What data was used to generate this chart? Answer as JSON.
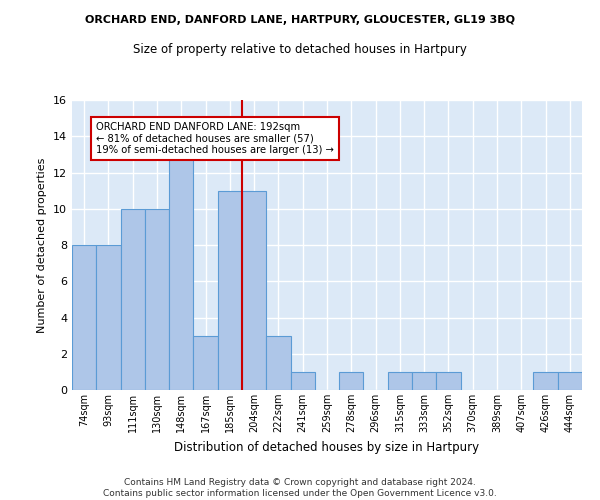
{
  "title": "ORCHARD END, DANFORD LANE, HARTPURY, GLOUCESTER, GL19 3BQ",
  "subtitle": "Size of property relative to detached houses in Hartpury",
  "xlabel": "Distribution of detached houses by size in Hartpury",
  "ylabel": "Number of detached properties",
  "categories": [
    "74sqm",
    "93sqm",
    "111sqm",
    "130sqm",
    "148sqm",
    "167sqm",
    "185sqm",
    "204sqm",
    "222sqm",
    "241sqm",
    "259sqm",
    "278sqm",
    "296sqm",
    "315sqm",
    "333sqm",
    "352sqm",
    "370sqm",
    "389sqm",
    "407sqm",
    "426sqm",
    "444sqm"
  ],
  "values": [
    8,
    8,
    10,
    10,
    13,
    3,
    11,
    11,
    3,
    1,
    0,
    1,
    0,
    1,
    1,
    1,
    0,
    0,
    0,
    1,
    1
  ],
  "bar_color": "#aec6e8",
  "bar_edge_color": "#5b9bd5",
  "background_color": "#dce9f7",
  "grid_color": "#ffffff",
  "vline_x": 6.5,
  "vline_color": "#cc0000",
  "annotation_text": "ORCHARD END DANFORD LANE: 192sqm\n← 81% of detached houses are smaller (57)\n19% of semi-detached houses are larger (13) →",
  "annotation_box_color": "#ffffff",
  "annotation_box_edge": "#cc0000",
  "ylim": [
    0,
    16
  ],
  "yticks": [
    0,
    2,
    4,
    6,
    8,
    10,
    12,
    14,
    16
  ],
  "footer": "Contains HM Land Registry data © Crown copyright and database right 2024.\nContains public sector information licensed under the Open Government Licence v3.0."
}
